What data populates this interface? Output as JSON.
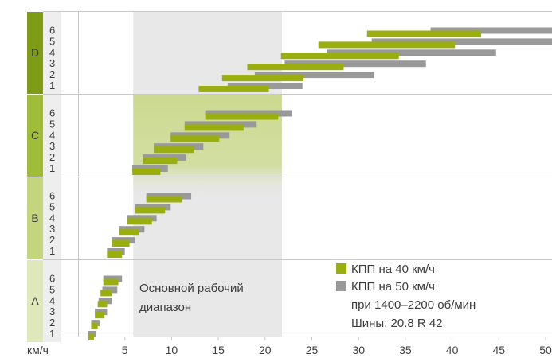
{
  "chart_data": {
    "type": "bar",
    "x_unit_label": "км/ч",
    "x_ticks": [
      5,
      10,
      15,
      20,
      25,
      30,
      35,
      40,
      45,
      50
    ],
    "xlim": [
      0,
      51
    ],
    "groups": [
      "A",
      "B",
      "C",
      "D"
    ],
    "gears": [
      "1",
      "2",
      "3",
      "4",
      "5",
      "6"
    ],
    "series": [
      {
        "name": "КПП на 40 км/ч",
        "color": "#9aae0e",
        "ranges": {
          "A": [
            [
              1.1,
              1.7
            ],
            [
              1.4,
              2.1
            ],
            [
              1.8,
              2.8
            ],
            [
              2.1,
              3.1
            ],
            [
              2.4,
              3.6
            ],
            [
              2.7,
              4.3
            ]
          ],
          "B": [
            [
              3.1,
              4.7
            ],
            [
              3.6,
              5.5
            ],
            [
              4.4,
              6.5
            ],
            [
              5.2,
              7.9
            ],
            [
              6.1,
              9.3
            ],
            [
              7.3,
              11.1
            ]
          ],
          "C": [
            [
              5.8,
              8.8
            ],
            [
              6.9,
              10.6
            ],
            [
              8.1,
              12.4
            ],
            [
              9.9,
              15.1
            ],
            [
              11.4,
              17.7
            ],
            [
              13.6,
              21.4
            ]
          ],
          "D": [
            [
              12.9,
              20.4
            ],
            [
              15.4,
              24.1
            ],
            [
              18.1,
              28.4
            ],
            [
              21.7,
              34.3
            ],
            [
              25.7,
              40.3
            ],
            [
              30.9,
              43.1
            ]
          ]
        }
      },
      {
        "name": "КПП на 50 км/ч",
        "color": "#999999",
        "ranges": {
          "A": [
            [
              1.1,
              1.9
            ],
            [
              1.4,
              2.3
            ],
            [
              1.8,
              3.1
            ],
            [
              2.2,
              3.6
            ],
            [
              2.6,
              4.2
            ],
            [
              2.7,
              4.7
            ]
          ],
          "B": [
            [
              3.1,
              5.0
            ],
            [
              3.6,
              6.1
            ],
            [
              4.4,
              7.1
            ],
            [
              5.2,
              8.4
            ],
            [
              6.1,
              9.9
            ],
            [
              7.3,
              12.1
            ]
          ],
          "C": [
            [
              5.8,
              9.6
            ],
            [
              6.9,
              11.5
            ],
            [
              8.1,
              13.4
            ],
            [
              9.9,
              16.2
            ],
            [
              11.4,
              19.1
            ],
            [
              13.6,
              22.9
            ]
          ],
          "D": [
            [
              16.0,
              24.0
            ],
            [
              18.9,
              31.6
            ],
            [
              22.1,
              37.2
            ],
            [
              26.6,
              44.7
            ],
            [
              31.4,
              53.0
            ],
            [
              37.7,
              53.0
            ]
          ]
        }
      }
    ],
    "highlight_range": {
      "label": "Основной рабочий диапазон",
      "from": 5.9,
      "to": 21.8
    },
    "legend_extra": [
      "при 1400–2200 об/мин",
      "Шины: 20.8 R 42"
    ],
    "grid": true
  },
  "colors": {
    "group_A": "#dfe8bb",
    "group_B": "#c3d67e",
    "group_C": "#a0bd3a",
    "group_D": "#7f9c16",
    "highlight_band": "#e8e8e8",
    "highlight_green": "#c9d98a",
    "grid": "#c8c8c8"
  }
}
